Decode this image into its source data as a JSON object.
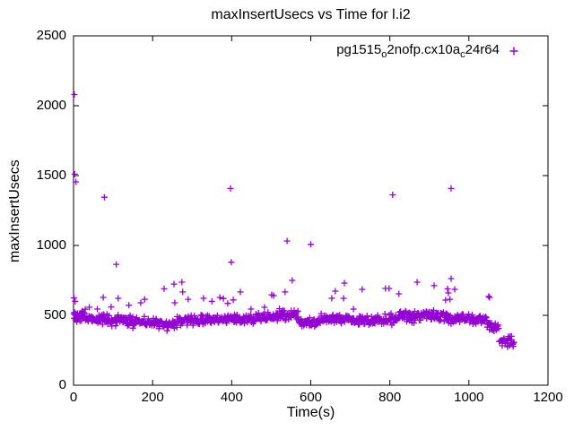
{
  "chart_data": {
    "type": "scatter",
    "title": "maxInsertUsecs vs Time for l.i2",
    "xlabel": "Time(s)",
    "ylabel": "maxInsertUsecs",
    "xlim": [
      0,
      1200
    ],
    "ylim": [
      0,
      2500
    ],
    "x_ticks": [
      0,
      200,
      400,
      600,
      800,
      1000,
      1200
    ],
    "y_ticks": [
      0,
      500,
      1000,
      1500,
      2000,
      2500
    ],
    "grid": false,
    "ticks_mirrored_inward": true,
    "frame_color": "#000000",
    "text_color": "#000000",
    "legend": {
      "position": "top-right-inside",
      "marker": "plus",
      "label_plain": "pg1515_o2nofp.cx10a_c24r64",
      "label_parts": [
        {
          "text": "pg1515"
        },
        {
          "sub": "o"
        },
        {
          "text": "2nofp.cx10a"
        },
        {
          "sub": "c"
        },
        {
          "text": "24r64"
        }
      ]
    },
    "series": [
      {
        "name": "pg1515_o2nofp.cx10a_c24r64",
        "color": "#9400d3",
        "marker": "plus",
        "marker_px": 7,
        "x_data_end": 1115,
        "outlier_points": [
          [
            1,
            625
          ],
          [
            2,
            2080
          ],
          [
            3,
            1510
          ],
          [
            4,
            600
          ],
          [
            6,
            1455
          ],
          [
            40,
            558
          ],
          [
            60,
            545
          ],
          [
            75,
            628
          ],
          [
            78,
            1345
          ],
          [
            95,
            560
          ],
          [
            108,
            865
          ],
          [
            113,
            622
          ],
          [
            140,
            572
          ],
          [
            170,
            590
          ],
          [
            180,
            615
          ],
          [
            229,
            690
          ],
          [
            254,
            724
          ],
          [
            256,
            590
          ],
          [
            274,
            737
          ],
          [
            276,
            667
          ],
          [
            290,
            615
          ],
          [
            329,
            622
          ],
          [
            350,
            600
          ],
          [
            370,
            628
          ],
          [
            379,
            620
          ],
          [
            390,
            585
          ],
          [
            397,
            1408
          ],
          [
            399,
            880
          ],
          [
            404,
            610
          ],
          [
            422,
            667
          ],
          [
            449,
            545
          ],
          [
            483,
            558
          ],
          [
            501,
            647
          ],
          [
            506,
            641
          ],
          [
            535,
            667
          ],
          [
            540,
            1032
          ],
          [
            553,
            750
          ],
          [
            600,
            1008
          ],
          [
            653,
            622
          ],
          [
            662,
            673
          ],
          [
            683,
            622
          ],
          [
            685,
            731
          ],
          [
            708,
            545
          ],
          [
            730,
            686
          ],
          [
            789,
            692
          ],
          [
            798,
            692
          ],
          [
            807,
            1362
          ],
          [
            823,
            654
          ],
          [
            869,
            737
          ],
          [
            912,
            712
          ],
          [
            941,
            609
          ],
          [
            946,
            690
          ],
          [
            948,
            660
          ],
          [
            952,
            615
          ],
          [
            955,
            763
          ],
          [
            955,
            1408
          ],
          [
            964,
            686
          ],
          [
            1050,
            635
          ],
          [
            1052,
            628
          ]
        ],
        "band_segment_format": "[t_start,t_end,count,center_usecs,half_range_usecs]",
        "band_segments": [
          [
            0,
            30,
            30,
            495,
            55
          ],
          [
            30,
            90,
            48,
            473,
            42
          ],
          [
            90,
            150,
            48,
            462,
            45
          ],
          [
            150,
            205,
            42,
            452,
            48
          ],
          [
            205,
            262,
            45,
            432,
            45
          ],
          [
            262,
            330,
            55,
            465,
            45
          ],
          [
            330,
            395,
            50,
            470,
            42
          ],
          [
            395,
            460,
            50,
            468,
            40
          ],
          [
            460,
            520,
            46,
            488,
            42
          ],
          [
            520,
            568,
            38,
            508,
            45
          ],
          [
            568,
            625,
            45,
            452,
            40
          ],
          [
            625,
            700,
            58,
            478,
            45
          ],
          [
            700,
            762,
            48,
            465,
            40
          ],
          [
            762,
            822,
            46,
            470,
            45
          ],
          [
            822,
            882,
            46,
            490,
            50
          ],
          [
            882,
            945,
            50,
            497,
            45
          ],
          [
            945,
            1002,
            42,
            480,
            45
          ],
          [
            1002,
            1046,
            34,
            468,
            40
          ],
          [
            1046,
            1076,
            22,
            420,
            42
          ],
          [
            1076,
            1115,
            30,
            315,
            45
          ]
        ]
      }
    ]
  }
}
